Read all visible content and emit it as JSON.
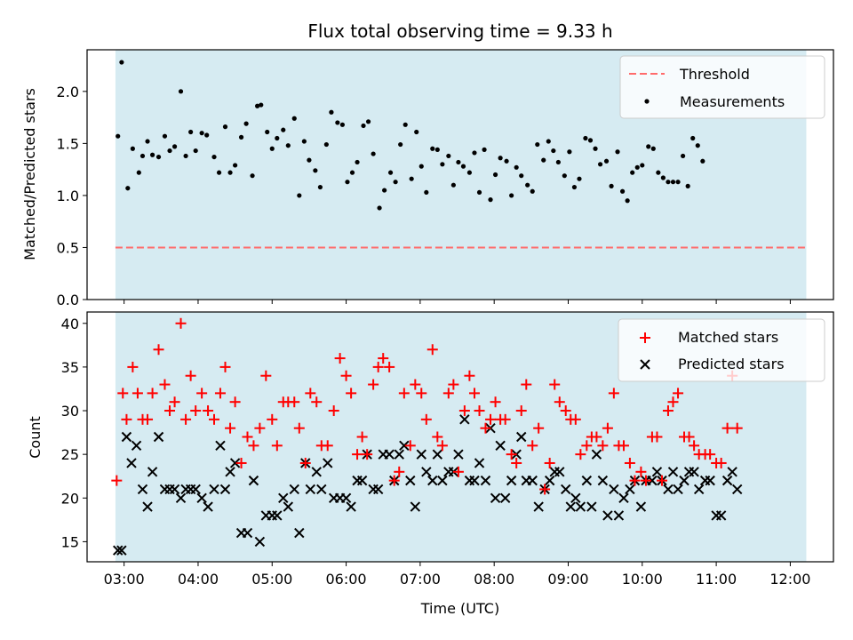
{
  "chart_data": {
    "title": "Flux total observing time = 9.33 h",
    "xlabel": "Time (UTC)",
    "x_ticks": [
      "03:00",
      "04:00",
      "05:00",
      "06:00",
      "07:00",
      "08:00",
      "09:00",
      "10:00",
      "11:00",
      "12:00"
    ],
    "x_range": [
      "02:30",
      "12:35"
    ],
    "observing_window": [
      "02:53",
      "12:13"
    ],
    "window_color": "#add8e6",
    "top": {
      "type": "scatter",
      "ylabel": "Matched/Predicted stars",
      "ylim": [
        0,
        2.4
      ],
      "y_ticks": [
        "0.0",
        "0.5",
        "1.0",
        "1.5",
        "2.0"
      ],
      "threshold": 0.5,
      "legend": [
        "Threshold",
        "Measurements"
      ],
      "legend_position": "top-right",
      "threshold_color": "#ff6b6b",
      "marker_color": "#000000",
      "points": [
        [
          "02:55",
          1.57
        ],
        [
          "02:58",
          2.28
        ],
        [
          "03:03",
          1.07
        ],
        [
          "03:07",
          1.45
        ],
        [
          "03:12",
          1.22
        ],
        [
          "03:15",
          1.38
        ],
        [
          "03:19",
          1.52
        ],
        [
          "03:23",
          1.39
        ],
        [
          "03:28",
          1.37
        ],
        [
          "03:33",
          1.57
        ],
        [
          "03:37",
          1.43
        ],
        [
          "03:41",
          1.47
        ],
        [
          "03:46",
          2.0
        ],
        [
          "03:50",
          1.38
        ],
        [
          "03:54",
          1.61
        ],
        [
          "03:58",
          1.43
        ],
        [
          "04:03",
          1.6
        ],
        [
          "04:07",
          1.58
        ],
        [
          "04:13",
          1.37
        ],
        [
          "04:17",
          1.22
        ],
        [
          "04:22",
          1.66
        ],
        [
          "04:26",
          1.22
        ],
        [
          "04:30",
          1.29
        ],
        [
          "04:35",
          1.56
        ],
        [
          "04:39",
          1.69
        ],
        [
          "04:44",
          1.19
        ],
        [
          "04:48",
          1.86
        ],
        [
          "04:51",
          1.87
        ],
        [
          "04:56",
          1.61
        ],
        [
          "05:00",
          1.45
        ],
        [
          "05:04",
          1.55
        ],
        [
          "05:09",
          1.63
        ],
        [
          "05:13",
          1.48
        ],
        [
          "05:18",
          1.74
        ],
        [
          "05:22",
          1.0
        ],
        [
          "05:26",
          1.52
        ],
        [
          "05:30",
          1.34
        ],
        [
          "05:35",
          1.24
        ],
        [
          "05:39",
          1.08
        ],
        [
          "05:44",
          1.49
        ],
        [
          "05:48",
          1.8
        ],
        [
          "05:53",
          1.7
        ],
        [
          "05:57",
          1.68
        ],
        [
          "06:01",
          1.13
        ],
        [
          "06:05",
          1.22
        ],
        [
          "06:09",
          1.32
        ],
        [
          "06:14",
          1.67
        ],
        [
          "06:18",
          1.71
        ],
        [
          "06:22",
          1.4
        ],
        [
          "06:27",
          0.88
        ],
        [
          "06:31",
          1.05
        ],
        [
          "06:36",
          1.22
        ],
        [
          "06:40",
          1.13
        ],
        [
          "06:44",
          1.49
        ],
        [
          "06:48",
          1.68
        ],
        [
          "06:53",
          1.16
        ],
        [
          "06:57",
          1.61
        ],
        [
          "07:01",
          1.28
        ],
        [
          "07:05",
          1.03
        ],
        [
          "07:10",
          1.45
        ],
        [
          "07:14",
          1.44
        ],
        [
          "07:18",
          1.3
        ],
        [
          "07:23",
          1.38
        ],
        [
          "07:27",
          1.1
        ],
        [
          "07:31",
          1.32
        ],
        [
          "07:35",
          1.28
        ],
        [
          "07:40",
          1.22
        ],
        [
          "07:44",
          1.41
        ],
        [
          "07:48",
          1.03
        ],
        [
          "07:52",
          1.44
        ],
        [
          "07:57",
          0.96
        ],
        [
          "08:01",
          1.2
        ],
        [
          "08:05",
          1.36
        ],
        [
          "08:10",
          1.33
        ],
        [
          "08:14",
          1.0
        ],
        [
          "08:18",
          1.27
        ],
        [
          "08:22",
          1.19
        ],
        [
          "08:27",
          1.1
        ],
        [
          "08:31",
          1.04
        ],
        [
          "08:35",
          1.49
        ],
        [
          "08:40",
          1.34
        ],
        [
          "08:44",
          1.52
        ],
        [
          "08:48",
          1.43
        ],
        [
          "08:52",
          1.32
        ],
        [
          "08:57",
          1.19
        ],
        [
          "09:01",
          1.42
        ],
        [
          "09:05",
          1.08
        ],
        [
          "09:09",
          1.16
        ],
        [
          "09:14",
          1.55
        ],
        [
          "09:18",
          1.53
        ],
        [
          "09:22",
          1.45
        ],
        [
          "09:26",
          1.3
        ],
        [
          "09:31",
          1.33
        ],
        [
          "09:35",
          1.09
        ],
        [
          "09:40",
          1.42
        ],
        [
          "09:44",
          1.04
        ],
        [
          "09:48",
          0.95
        ],
        [
          "09:52",
          1.22
        ],
        [
          "09:56",
          1.27
        ],
        [
          "10:00",
          1.29
        ],
        [
          "10:05",
          1.47
        ],
        [
          "10:09",
          1.45
        ],
        [
          "10:13",
          1.22
        ],
        [
          "10:17",
          1.17
        ],
        [
          "10:21",
          1.13
        ],
        [
          "10:25",
          1.13
        ],
        [
          "10:29",
          1.13
        ],
        [
          "10:33",
          1.38
        ],
        [
          "10:37",
          1.09
        ],
        [
          "10:41",
          1.55
        ],
        [
          "10:45",
          1.48
        ],
        [
          "10:49",
          1.33
        ]
      ]
    },
    "bottom": {
      "type": "scatter",
      "ylabel": "Count",
      "ylim": [
        12.7,
        41.3
      ],
      "y_ticks": [
        "15",
        "20",
        "25",
        "30",
        "35",
        "40"
      ],
      "legend": [
        "Matched stars",
        "Predicted stars"
      ],
      "legend_position": "top-right",
      "matched_color": "#ff0000",
      "predicted_color": "#000000",
      "matched": [
        [
          "02:54",
          22
        ],
        [
          "02:59",
          32
        ],
        [
          "03:02",
          29
        ],
        [
          "03:07",
          35
        ],
        [
          "03:11",
          32
        ],
        [
          "03:15",
          29
        ],
        [
          "03:19",
          29
        ],
        [
          "03:23",
          32
        ],
        [
          "03:28",
          37
        ],
        [
          "03:33",
          33
        ],
        [
          "03:37",
          30
        ],
        [
          "03:41",
          31
        ],
        [
          "03:46",
          40
        ],
        [
          "03:50",
          29
        ],
        [
          "03:54",
          34
        ],
        [
          "03:58",
          30
        ],
        [
          "04:03",
          32
        ],
        [
          "04:08",
          30
        ],
        [
          "04:13",
          29
        ],
        [
          "04:18",
          32
        ],
        [
          "04:22",
          35
        ],
        [
          "04:26",
          28
        ],
        [
          "04:30",
          31
        ],
        [
          "04:35",
          24
        ],
        [
          "04:40",
          27
        ],
        [
          "04:45",
          26
        ],
        [
          "04:50",
          28
        ],
        [
          "04:55",
          34
        ],
        [
          "05:00",
          29
        ],
        [
          "05:04",
          26
        ],
        [
          "05:09",
          31
        ],
        [
          "05:13",
          31
        ],
        [
          "05:18",
          31
        ],
        [
          "05:22",
          28
        ],
        [
          "05:27",
          24
        ],
        [
          "05:31",
          32
        ],
        [
          "05:36",
          31
        ],
        [
          "05:40",
          26
        ],
        [
          "05:45",
          26
        ],
        [
          "05:50",
          30
        ],
        [
          "05:55",
          36
        ],
        [
          "06:00",
          34
        ],
        [
          "06:04",
          32
        ],
        [
          "06:09",
          25
        ],
        [
          "06:13",
          27
        ],
        [
          "06:17",
          25
        ],
        [
          "06:22",
          33
        ],
        [
          "06:26",
          35
        ],
        [
          "06:30",
          36
        ],
        [
          "06:35",
          35
        ],
        [
          "06:39",
          22
        ],
        [
          "06:43",
          23
        ],
        [
          "06:47",
          32
        ],
        [
          "06:52",
          26
        ],
        [
          "06:56",
          33
        ],
        [
          "07:01",
          32
        ],
        [
          "07:05",
          29
        ],
        [
          "07:10",
          37
        ],
        [
          "07:14",
          27
        ],
        [
          "07:18",
          26
        ],
        [
          "07:23",
          32
        ],
        [
          "07:27",
          33
        ],
        [
          "07:31",
          23
        ],
        [
          "07:36",
          30
        ],
        [
          "07:40",
          34
        ],
        [
          "07:44",
          32
        ],
        [
          "07:48",
          30
        ],
        [
          "07:53",
          28
        ],
        [
          "07:57",
          29
        ],
        [
          "08:01",
          31
        ],
        [
          "08:05",
          29
        ],
        [
          "08:09",
          29
        ],
        [
          "08:14",
          25
        ],
        [
          "08:18",
          24
        ],
        [
          "08:22",
          30
        ],
        [
          "08:26",
          33
        ],
        [
          "08:31",
          26
        ],
        [
          "08:36",
          28
        ],
        [
          "08:41",
          21
        ],
        [
          "08:45",
          24
        ],
        [
          "08:49",
          33
        ],
        [
          "08:53",
          31
        ],
        [
          "08:58",
          30
        ],
        [
          "09:02",
          29
        ],
        [
          "09:06",
          29
        ],
        [
          "09:10",
          25
        ],
        [
          "09:15",
          26
        ],
        [
          "09:19",
          27
        ],
        [
          "09:23",
          27
        ],
        [
          "09:28",
          26
        ],
        [
          "09:32",
          28
        ],
        [
          "09:37",
          32
        ],
        [
          "09:41",
          26
        ],
        [
          "09:45",
          26
        ],
        [
          "09:50",
          24
        ],
        [
          "09:54",
          22
        ],
        [
          "09:59",
          23
        ],
        [
          "10:03",
          22
        ],
        [
          "10:08",
          27
        ],
        [
          "10:12",
          27
        ],
        [
          "10:16",
          22
        ],
        [
          "10:21",
          30
        ],
        [
          "10:25",
          31
        ],
        [
          "10:29",
          32
        ],
        [
          "10:34",
          27
        ],
        [
          "10:38",
          27
        ],
        [
          "10:42",
          26
        ],
        [
          "10:46",
          25
        ],
        [
          "10:51",
          25
        ],
        [
          "10:55",
          25
        ],
        [
          "11:00",
          24
        ],
        [
          "11:04",
          24
        ],
        [
          "11:09",
          28
        ],
        [
          "11:13",
          34
        ],
        [
          "11:17",
          28
        ]
      ],
      "predicted": [
        [
          "02:55",
          14
        ],
        [
          "02:58",
          14
        ],
        [
          "03:02",
          27
        ],
        [
          "03:06",
          24
        ],
        [
          "03:10",
          26
        ],
        [
          "03:15",
          21
        ],
        [
          "03:19",
          19
        ],
        [
          "03:23",
          23
        ],
        [
          "03:28",
          27
        ],
        [
          "03:33",
          21
        ],
        [
          "03:37",
          21
        ],
        [
          "03:41",
          21
        ],
        [
          "03:46",
          20
        ],
        [
          "03:50",
          21
        ],
        [
          "03:54",
          21
        ],
        [
          "03:58",
          21
        ],
        [
          "04:03",
          20
        ],
        [
          "04:08",
          19
        ],
        [
          "04:13",
          21
        ],
        [
          "04:18",
          26
        ],
        [
          "04:22",
          21
        ],
        [
          "04:26",
          23
        ],
        [
          "04:30",
          24
        ],
        [
          "04:35",
          16
        ],
        [
          "04:40",
          16
        ],
        [
          "04:45",
          22
        ],
        [
          "04:50",
          15
        ],
        [
          "04:55",
          18
        ],
        [
          "05:00",
          18
        ],
        [
          "05:04",
          18
        ],
        [
          "05:09",
          20
        ],
        [
          "05:13",
          19
        ],
        [
          "05:18",
          21
        ],
        [
          "05:22",
          16
        ],
        [
          "05:27",
          24
        ],
        [
          "05:31",
          21
        ],
        [
          "05:36",
          23
        ],
        [
          "05:40",
          21
        ],
        [
          "05:45",
          24
        ],
        [
          "05:50",
          20
        ],
        [
          "05:55",
          20
        ],
        [
          "06:00",
          20
        ],
        [
          "06:04",
          19
        ],
        [
          "06:09",
          22
        ],
        [
          "06:13",
          22
        ],
        [
          "06:17",
          25
        ],
        [
          "06:22",
          21
        ],
        [
          "06:26",
          21
        ],
        [
          "06:30",
          25
        ],
        [
          "06:35",
          25
        ],
        [
          "06:39",
          22
        ],
        [
          "06:43",
          25
        ],
        [
          "06:47",
          26
        ],
        [
          "06:52",
          22
        ],
        [
          "06:56",
          19
        ],
        [
          "07:01",
          25
        ],
        [
          "07:05",
          23
        ],
        [
          "07:10",
          22
        ],
        [
          "07:14",
          25
        ],
        [
          "07:18",
          22
        ],
        [
          "07:23",
          23
        ],
        [
          "07:27",
          23
        ],
        [
          "07:31",
          25
        ],
        [
          "07:36",
          29
        ],
        [
          "07:40",
          22
        ],
        [
          "07:44",
          22
        ],
        [
          "07:48",
          24
        ],
        [
          "07:53",
          22
        ],
        [
          "07:57",
          28
        ],
        [
          "08:01",
          20
        ],
        [
          "08:05",
          26
        ],
        [
          "08:09",
          20
        ],
        [
          "08:14",
          22
        ],
        [
          "08:18",
          25
        ],
        [
          "08:22",
          27
        ],
        [
          "08:26",
          22
        ],
        [
          "08:31",
          22
        ],
        [
          "08:36",
          19
        ],
        [
          "08:41",
          21
        ],
        [
          "08:45",
          22
        ],
        [
          "08:49",
          23
        ],
        [
          "08:53",
          23
        ],
        [
          "08:58",
          21
        ],
        [
          "09:02",
          19
        ],
        [
          "09:06",
          20
        ],
        [
          "09:10",
          19
        ],
        [
          "09:15",
          22
        ],
        [
          "09:19",
          19
        ],
        [
          "09:23",
          25
        ],
        [
          "09:28",
          22
        ],
        [
          "09:32",
          18
        ],
        [
          "09:37",
          21
        ],
        [
          "09:41",
          18
        ],
        [
          "09:45",
          20
        ],
        [
          "09:50",
          21
        ],
        [
          "09:54",
          22
        ],
        [
          "09:59",
          19
        ],
        [
          "10:03",
          22
        ],
        [
          "10:08",
          22
        ],
        [
          "10:12",
          23
        ],
        [
          "10:16",
          22
        ],
        [
          "10:21",
          21
        ],
        [
          "10:25",
          23
        ],
        [
          "10:29",
          21
        ],
        [
          "10:34",
          22
        ],
        [
          "10:38",
          23
        ],
        [
          "10:42",
          23
        ],
        [
          "10:46",
          21
        ],
        [
          "10:51",
          22
        ],
        [
          "10:55",
          22
        ],
        [
          "11:00",
          18
        ],
        [
          "11:04",
          18
        ],
        [
          "11:09",
          22
        ],
        [
          "11:13",
          23
        ],
        [
          "11:17",
          21
        ]
      ]
    }
  }
}
